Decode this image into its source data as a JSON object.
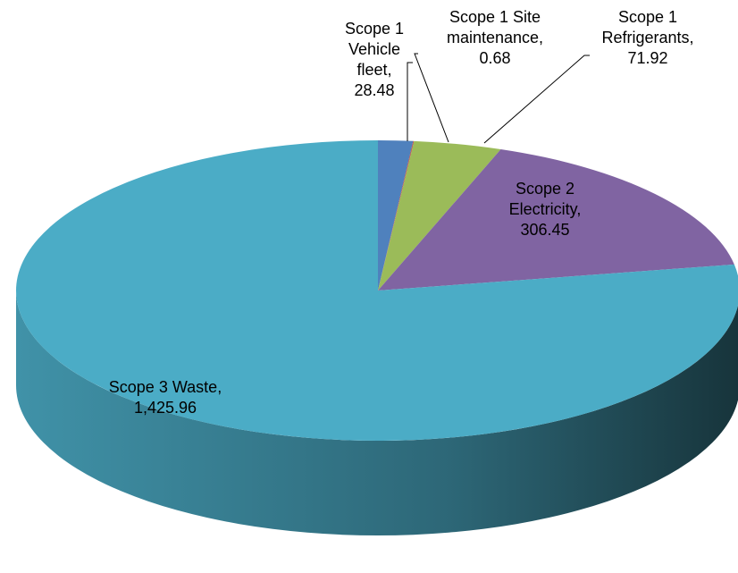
{
  "chart_data": {
    "type": "pie",
    "categories": [
      "Scope 1 Vehicle fleet",
      "Scope 1 Site maintenance",
      "Scope 1 Refrigerants",
      "Scope 2 Electricity",
      "Scope 3 Waste"
    ],
    "values": [
      28.48,
      0.68,
      71.92,
      306.45,
      1425.96
    ],
    "value_labels": [
      "28.48",
      "0.68",
      "71.92",
      "306.45",
      "1,425.96"
    ],
    "colors": [
      "#4f81bd",
      "#c0504d",
      "#9bbb59",
      "#8064a2",
      "#4bacc6"
    ]
  }
}
